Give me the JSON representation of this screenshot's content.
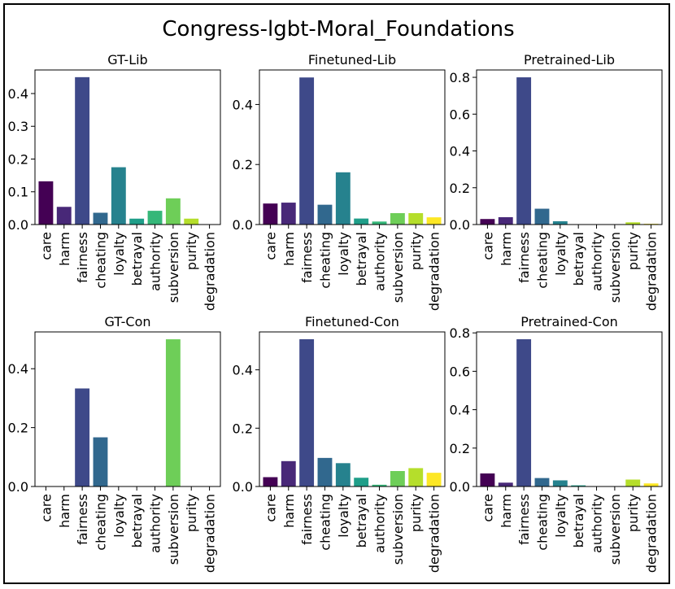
{
  "figure_title": "Congress-lgbt-Moral_Foundations",
  "chart_data": [
    {
      "type": "bar",
      "title": "GT-Lib",
      "categories": [
        "care",
        "harm",
        "fairness",
        "cheating",
        "loyalty",
        "betrayal",
        "authority",
        "subversion",
        "purity",
        "degradation"
      ],
      "values": [
        0.132,
        0.054,
        0.45,
        0.036,
        0.175,
        0.018,
        0.042,
        0.08,
        0.018,
        0.0
      ],
      "ylim": [
        0,
        0.472
      ],
      "yticks": [
        0.0,
        0.1,
        0.2,
        0.3,
        0.4
      ],
      "ytick_labels": [
        "0.0",
        "0.1",
        "0.2",
        "0.3",
        "0.4"
      ]
    },
    {
      "type": "bar",
      "title": "Finetuned-Lib",
      "categories": [
        "care",
        "harm",
        "fairness",
        "cheating",
        "loyalty",
        "betrayal",
        "authority",
        "subversion",
        "purity",
        "degradation"
      ],
      "values": [
        0.07,
        0.073,
        0.49,
        0.066,
        0.174,
        0.02,
        0.01,
        0.038,
        0.038,
        0.024
      ],
      "ylim": [
        0,
        0.515
      ],
      "yticks": [
        0.0,
        0.2,
        0.4
      ],
      "ytick_labels": [
        "0.0",
        "0.2",
        "0.4"
      ]
    },
    {
      "type": "bar",
      "title": "Pretrained-Lib",
      "categories": [
        "care",
        "harm",
        "fairness",
        "cheating",
        "loyalty",
        "betrayal",
        "authority",
        "subversion",
        "purity",
        "degradation"
      ],
      "values": [
        0.03,
        0.04,
        0.8,
        0.086,
        0.018,
        0.002,
        0.002,
        0.002,
        0.012,
        0.004
      ],
      "ylim": [
        0,
        0.84
      ],
      "yticks": [
        0.0,
        0.2,
        0.4,
        0.6,
        0.8
      ],
      "ytick_labels": [
        "0.0",
        "0.2",
        "0.4",
        "0.6",
        "0.8"
      ]
    },
    {
      "type": "bar",
      "title": "GT-Con",
      "categories": [
        "care",
        "harm",
        "fairness",
        "cheating",
        "loyalty",
        "betrayal",
        "authority",
        "subversion",
        "purity",
        "degradation"
      ],
      "values": [
        0.0,
        0.0,
        0.333,
        0.167,
        0.0,
        0.0,
        0.0,
        0.5,
        0.0,
        0.0
      ],
      "ylim": [
        0,
        0.525
      ],
      "yticks": [
        0.0,
        0.2,
        0.4
      ],
      "ytick_labels": [
        "0.0",
        "0.2",
        "0.4"
      ]
    },
    {
      "type": "bar",
      "title": "Finetuned-Con",
      "categories": [
        "care",
        "harm",
        "fairness",
        "cheating",
        "loyalty",
        "betrayal",
        "authority",
        "subversion",
        "purity",
        "degradation"
      ],
      "values": [
        0.032,
        0.087,
        0.505,
        0.098,
        0.08,
        0.03,
        0.006,
        0.053,
        0.063,
        0.047
      ],
      "ylim": [
        0,
        0.53
      ],
      "yticks": [
        0.0,
        0.2,
        0.4
      ],
      "ytick_labels": [
        "0.0",
        "0.2",
        "0.4"
      ]
    },
    {
      "type": "bar",
      "title": "Pretrained-Con",
      "categories": [
        "care",
        "harm",
        "fairness",
        "cheating",
        "loyalty",
        "betrayal",
        "authority",
        "subversion",
        "purity",
        "degradation"
      ],
      "values": [
        0.068,
        0.02,
        0.767,
        0.044,
        0.032,
        0.006,
        0.002,
        0.002,
        0.036,
        0.016
      ],
      "ylim": [
        0,
        0.805
      ],
      "yticks": [
        0.0,
        0.2,
        0.4,
        0.6,
        0.8
      ],
      "ytick_labels": [
        "0.0",
        "0.2",
        "0.4",
        "0.6",
        "0.8"
      ]
    }
  ],
  "bar_colors": [
    "#440154",
    "#482878",
    "#3e4989",
    "#31688e",
    "#26828e",
    "#1f9e89",
    "#35b779",
    "#6ece58",
    "#b5de2b",
    "#fde725"
  ]
}
